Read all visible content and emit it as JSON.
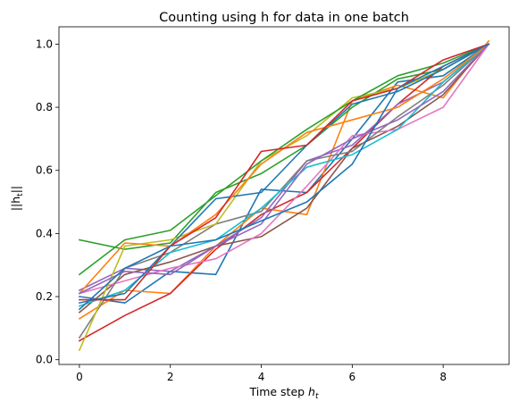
{
  "chart_data": {
    "type": "line",
    "title": "Counting using h for data in one batch",
    "xlabel_main": "Time step ",
    "xlabel_math": "h",
    "xlabel_sub": "t",
    "ylabel_main": "||h",
    "ylabel_sub": "t",
    "ylabel_end": "||",
    "x": [
      0,
      1,
      2,
      3,
      4,
      5,
      6,
      7,
      8,
      9
    ],
    "xlim": [
      -0.45,
      9.45
    ],
    "ylim": [
      -0.015,
      1.055
    ],
    "xticks": [
      0,
      2,
      4,
      6,
      8
    ],
    "yticks": [
      0.0,
      0.2,
      0.4,
      0.6,
      0.8,
      1.0
    ],
    "xtick_labels": [
      "0",
      "2",
      "4",
      "6",
      "8"
    ],
    "ytick_labels": [
      "0.0",
      "0.2",
      "0.4",
      "0.6",
      "0.8",
      "1.0"
    ],
    "grid": false,
    "series": [
      {
        "color": "#1f77b4",
        "values": [
          0.2,
          0.18,
          0.28,
          0.27,
          0.54,
          0.53,
          0.7,
          0.88,
          0.9,
          1.0
        ]
      },
      {
        "color": "#ff7f0e",
        "values": [
          0.13,
          0.22,
          0.21,
          0.36,
          0.48,
          0.46,
          0.82,
          0.87,
          0.83,
          1.01
        ]
      },
      {
        "color": "#2ca02c",
        "values": [
          0.38,
          0.35,
          0.37,
          0.53,
          0.59,
          0.68,
          0.8,
          0.89,
          0.92,
          1.0
        ]
      },
      {
        "color": "#d62728",
        "values": [
          0.06,
          0.14,
          0.21,
          0.35,
          0.46,
          0.53,
          0.67,
          0.81,
          0.93,
          1.0
        ]
      },
      {
        "color": "#9467bd",
        "values": [
          0.22,
          0.29,
          0.28,
          0.36,
          0.45,
          0.63,
          0.68,
          0.81,
          0.88,
          1.0
        ]
      },
      {
        "color": "#8c564b",
        "values": [
          0.15,
          0.27,
          0.31,
          0.36,
          0.39,
          0.48,
          0.67,
          0.74,
          0.84,
          1.0
        ]
      },
      {
        "color": "#e377c2",
        "values": [
          0.21,
          0.25,
          0.29,
          0.32,
          0.4,
          0.55,
          0.71,
          0.73,
          0.8,
          1.0
        ]
      },
      {
        "color": "#7f7f7f",
        "values": [
          0.07,
          0.29,
          0.34,
          0.43,
          0.47,
          0.63,
          0.66,
          0.77,
          0.87,
          1.0
        ]
      },
      {
        "color": "#bcbd22",
        "values": [
          0.03,
          0.36,
          0.38,
          0.43,
          0.63,
          0.71,
          0.83,
          0.86,
          0.92,
          1.0
        ]
      },
      {
        "color": "#17becf",
        "values": [
          0.17,
          0.22,
          0.34,
          0.38,
          0.48,
          0.61,
          0.65,
          0.73,
          0.88,
          1.0
        ]
      },
      {
        "color": "#1f77b4",
        "values": [
          0.18,
          0.21,
          0.36,
          0.51,
          0.53,
          0.68,
          0.81,
          0.85,
          0.92,
          1.0
        ]
      },
      {
        "color": "#ff7f0e",
        "values": [
          0.21,
          0.37,
          0.36,
          0.46,
          0.62,
          0.72,
          0.76,
          0.8,
          0.89,
          1.0
        ]
      },
      {
        "color": "#2ca02c",
        "values": [
          0.27,
          0.38,
          0.41,
          0.52,
          0.63,
          0.73,
          0.82,
          0.9,
          0.94,
          1.0
        ]
      },
      {
        "color": "#d62728",
        "values": [
          0.19,
          0.19,
          0.36,
          0.45,
          0.66,
          0.68,
          0.82,
          0.86,
          0.95,
          1.0
        ]
      },
      {
        "color": "#9467bd",
        "values": [
          0.21,
          0.28,
          0.27,
          0.36,
          0.43,
          0.62,
          0.7,
          0.76,
          0.85,
          1.0
        ]
      },
      {
        "color": "#1f77b4",
        "values": [
          0.16,
          0.29,
          0.36,
          0.38,
          0.44,
          0.5,
          0.62,
          0.86,
          0.93,
          1.0
        ]
      }
    ]
  }
}
